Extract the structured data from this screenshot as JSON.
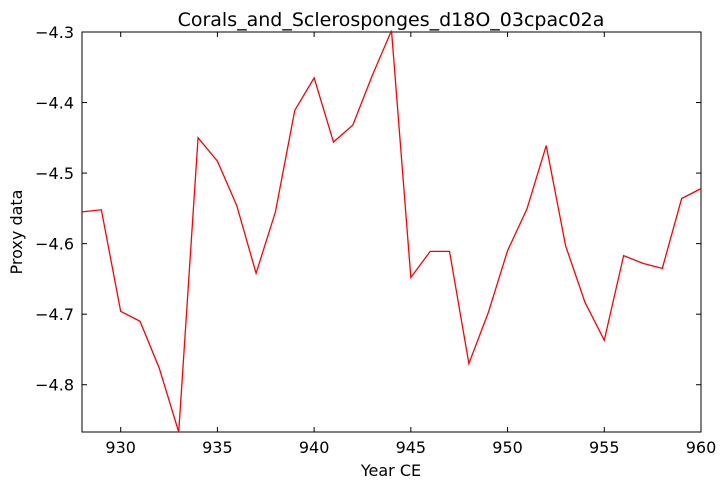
{
  "chart_data": {
    "type": "line",
    "title": "Corals_and_Sclerosponges_d18O_03cpac02a",
    "xlabel": "Year CE",
    "ylabel": "Proxy data",
    "xlim": [
      928,
      960
    ],
    "ylim": [
      -4.867,
      -4.3
    ],
    "xticks": [
      930,
      935,
      940,
      945,
      950,
      955,
      960
    ],
    "yticks": [
      -4.3,
      -4.4,
      -4.5,
      -4.6,
      -4.7,
      -4.8
    ],
    "ytick_labels": [
      "−4.3",
      "−4.4",
      "−4.5",
      "−4.6",
      "−4.7",
      "−4.8"
    ],
    "grid": false,
    "series": [
      {
        "color": "#ff0000",
        "x": [
          928,
          929,
          930,
          931,
          932,
          933,
          934,
          935,
          936,
          937,
          938,
          939,
          940,
          941,
          942,
          943,
          944,
          945,
          946,
          947,
          948,
          949,
          950,
          951,
          952,
          953,
          954,
          955,
          956,
          957,
          958,
          959,
          960
        ],
        "y": [
          -4.555,
          -4.552,
          -4.696,
          -4.71,
          -4.777,
          -4.867,
          -4.45,
          -4.483,
          -4.546,
          -4.642,
          -4.555,
          -4.411,
          -4.365,
          -4.456,
          -4.432,
          -4.362,
          -4.298,
          -4.648,
          -4.611,
          -4.611,
          -4.77,
          -4.698,
          -4.61,
          -4.551,
          -4.461,
          -4.603,
          -4.683,
          -4.737,
          -4.617,
          -4.628,
          -4.635,
          -4.536,
          -4.522
        ]
      }
    ]
  }
}
